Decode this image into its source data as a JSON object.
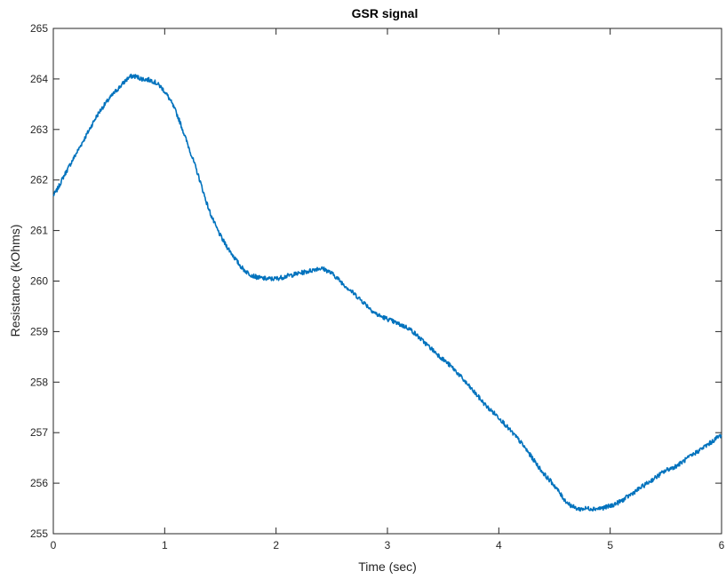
{
  "chart_data": {
    "type": "line",
    "title": "GSR signal",
    "xlabel": "Time (sec)",
    "ylabel": "Resistance (kOhms)",
    "xlim": [
      0,
      6
    ],
    "ylim": [
      255,
      265
    ],
    "xticks": [
      "0",
      "1",
      "2",
      "3",
      "4",
      "5",
      "6"
    ],
    "yticks": [
      "255",
      "256",
      "257",
      "258",
      "259",
      "260",
      "261",
      "262",
      "263",
      "264",
      "265"
    ],
    "grid": false,
    "legend": "none",
    "line_color": "#0072BD",
    "series": [
      {
        "x": [
          0,
          0.1,
          0.2,
          0.3,
          0.4,
          0.5,
          0.6,
          0.7,
          0.8,
          0.9,
          1.0,
          1.1,
          1.2,
          1.3,
          1.4,
          1.5,
          1.6,
          1.7,
          1.8,
          1.9,
          2.0,
          2.1,
          2.2,
          2.3,
          2.4,
          2.5,
          2.6,
          2.7,
          2.8,
          2.9,
          3.0,
          3.1,
          3.2,
          3.3,
          3.4,
          3.5,
          3.6,
          3.7,
          3.8,
          3.9,
          4.0,
          4.1,
          4.2,
          4.3,
          4.4,
          4.5,
          4.6,
          4.7,
          4.8,
          4.9,
          5.0,
          5.1,
          5.2,
          5.3,
          5.4,
          5.5,
          5.6,
          5.7,
          5.8,
          5.9,
          6.0
        ],
        "values": [
          261.7,
          262.1,
          262.5,
          262.9,
          263.3,
          263.6,
          263.85,
          264.05,
          264.0,
          263.95,
          263.75,
          263.35,
          262.75,
          262.1,
          261.4,
          260.9,
          260.55,
          260.25,
          260.1,
          260.05,
          260.05,
          260.1,
          260.15,
          260.2,
          260.25,
          260.15,
          259.95,
          259.75,
          259.55,
          259.35,
          259.25,
          259.15,
          259.05,
          258.85,
          258.65,
          258.45,
          258.25,
          258.0,
          257.75,
          257.5,
          257.3,
          257.05,
          256.8,
          256.5,
          256.2,
          255.95,
          255.65,
          255.5,
          255.5,
          255.5,
          255.55,
          255.65,
          255.8,
          255.95,
          256.1,
          256.25,
          256.35,
          256.5,
          256.65,
          256.8,
          256.95
        ]
      }
    ]
  }
}
